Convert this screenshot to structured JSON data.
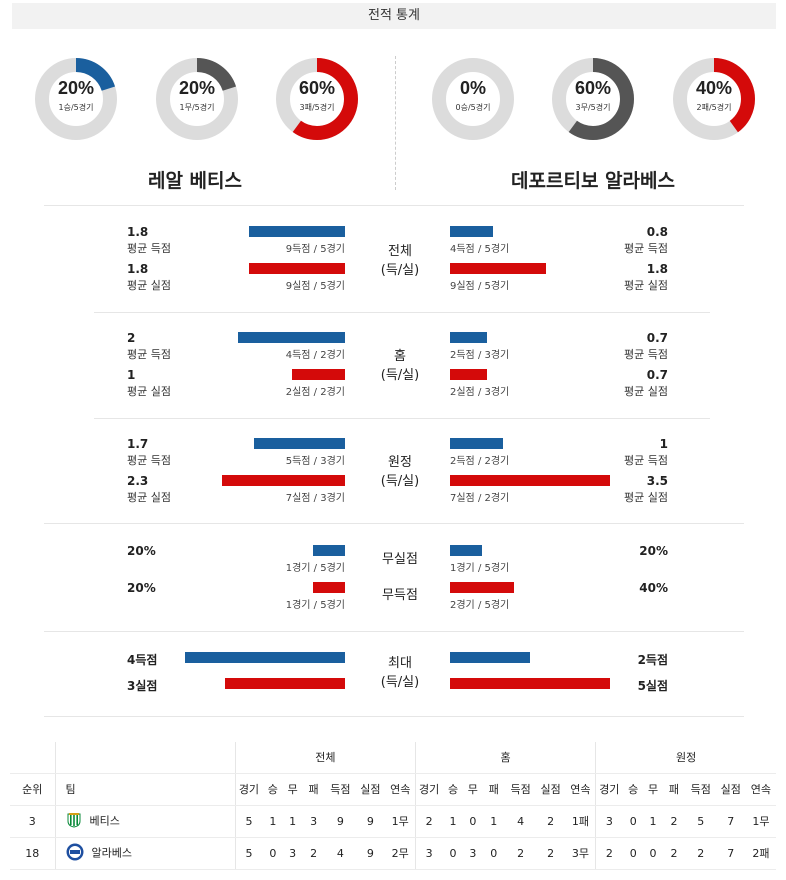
{
  "header": {
    "title": "전적 통계"
  },
  "teams": {
    "home_name": "레알 베티스",
    "away_name": "데포르티보 알라베스"
  },
  "donuts": [
    {
      "pct": "20%",
      "sub": "1승/5경기",
      "value": 0.2,
      "color": "#1a5f9e"
    },
    {
      "pct": "20%",
      "sub": "1무/5경기",
      "value": 0.2,
      "color": "#555555"
    },
    {
      "pct": "60%",
      "sub": "3패/5경기",
      "value": 0.6,
      "color": "#d40a0a"
    },
    {
      "pct": "0%",
      "sub": "0승/5경기",
      "value": 0.0,
      "color": "#1a5f9e"
    },
    {
      "pct": "60%",
      "sub": "3무/5경기",
      "value": 0.6,
      "color": "#555555"
    },
    {
      "pct": "40%",
      "sub": "2패/5경기",
      "value": 0.4,
      "color": "#d40a0a"
    }
  ],
  "sections": [
    {
      "label1": "전체",
      "label2": "(득/실)",
      "left": [
        {
          "value": "1.8",
          "label": "평균 득점",
          "caption": "9득점 / 5경기",
          "color": "blue"
        },
        {
          "value": "1.8",
          "label": "평균 실점",
          "caption": "9실점 / 5경기",
          "color": "red"
        }
      ],
      "right": [
        {
          "value": "0.8",
          "label": "평균 득점",
          "caption": "4득점 / 5경기",
          "color": "blue"
        },
        {
          "value": "1.8",
          "label": "평균 실점",
          "caption": "9실점 / 5경기",
          "color": "red"
        }
      ]
    },
    {
      "label1": "홈",
      "label2": "(득/실)",
      "left": [
        {
          "value": "2",
          "label": "평균 득점",
          "caption": "4득점 / 2경기",
          "color": "blue"
        },
        {
          "value": "1",
          "label": "평균 실점",
          "caption": "2실점 / 2경기",
          "color": "red"
        }
      ],
      "right": [
        {
          "value": "0.7",
          "label": "평균 득점",
          "caption": "2득점 / 3경기",
          "color": "blue"
        },
        {
          "value": "0.7",
          "label": "평균 실점",
          "caption": "2실점 / 3경기",
          "color": "red"
        }
      ]
    },
    {
      "label1": "원정",
      "label2": "(득/실)",
      "left": [
        {
          "value": "1.7",
          "label": "평균 득점",
          "caption": "5득점 / 3경기",
          "color": "blue"
        },
        {
          "value": "2.3",
          "label": "평균 실점",
          "caption": "7실점 / 3경기",
          "color": "red"
        }
      ],
      "right": [
        {
          "value": "1",
          "label": "평균 득점",
          "caption": "2득점 / 2경기",
          "color": "blue"
        },
        {
          "value": "3.5",
          "label": "평균 실점",
          "caption": "7실점 / 2경기",
          "color": "red"
        }
      ]
    }
  ],
  "clean": {
    "row1": {
      "label": "무실점",
      "left_value": "20%",
      "left_caption": "1경기 / 5경기",
      "left_frac": 0.2,
      "right_value": "20%",
      "right_caption": "1경기 / 5경기",
      "right_frac": 0.2
    },
    "row2": {
      "label": "무득점",
      "left_value": "20%",
      "left_caption": "1경기 / 5경기",
      "left_frac": 0.2,
      "right_value": "40%",
      "right_caption": "2경기 / 5경기",
      "right_frac": 0.4
    }
  },
  "max": {
    "label1": "최대",
    "label2": "(득/실)",
    "left_goals": "4득점",
    "left_conceded": "3실점",
    "right_goals": "2득점",
    "right_conceded": "5실점"
  },
  "table": {
    "group_headers": [
      "전체",
      "홈",
      "원정"
    ],
    "col_rank": "순위",
    "col_team": "팀",
    "sub_headers": [
      "경기",
      "승",
      "무",
      "패",
      "득점",
      "실점",
      "연속"
    ],
    "rows": [
      {
        "rank": "3",
        "team": "베티스",
        "logo": "betis-logo",
        "all": [
          "5",
          "1",
          "1",
          "3",
          "9",
          "9",
          "1무"
        ],
        "home": [
          "2",
          "1",
          "0",
          "1",
          "4",
          "2",
          "1패"
        ],
        "away": [
          "3",
          "0",
          "1",
          "2",
          "5",
          "7",
          "1무"
        ]
      },
      {
        "rank": "18",
        "team": "알라베스",
        "logo": "alaves-logo",
        "all": [
          "5",
          "0",
          "3",
          "2",
          "4",
          "9",
          "2무"
        ],
        "home": [
          "3",
          "0",
          "3",
          "0",
          "2",
          "2",
          "3무"
        ],
        "away": [
          "2",
          "0",
          "0",
          "2",
          "2",
          "7",
          "2패"
        ]
      }
    ]
  }
}
